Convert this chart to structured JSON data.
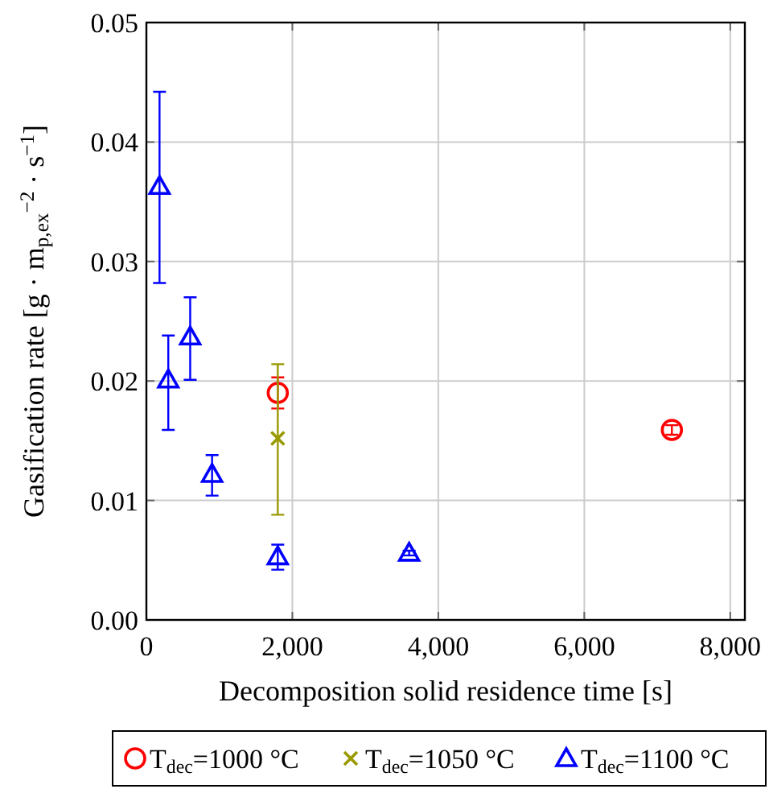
{
  "chart_data": {
    "type": "scatter",
    "xlabel": "Decomposition solid residence time [s]",
    "ylabel": "Gasification rate [g · m$_{p,ex}$$^{−2}$ · s$^{−1}$]",
    "xlim": [
      0,
      8200
    ],
    "xticks": [
      0,
      {
        "value": 2000,
        "label": "2,000"
      },
      {
        "value": 4000,
        "label": "4,000"
      },
      {
        "value": 6000,
        "label": "6,000"
      },
      {
        "value": 8000,
        "label": "8,000"
      }
    ],
    "ylim": [
      0,
      0.05
    ],
    "yticks": [
      {
        "value": 0,
        "label": "0.00"
      },
      {
        "value": 0.01,
        "label": "0.01"
      },
      {
        "value": 0.02,
        "label": "0.02"
      },
      {
        "value": 0.03,
        "label": "0.03"
      },
      {
        "value": 0.04,
        "label": "0.04"
      },
      {
        "value": 0.05,
        "label": "0.05"
      }
    ],
    "grid": true,
    "legend": "bottom",
    "series": [
      {
        "name": "T$_{dec}$=1000 °C",
        "color": "#ff0000",
        "marker": "circle",
        "x": [
          1800,
          7200
        ],
        "values": [
          0.019,
          0.0159
        ],
        "errors": [
          [
            0.0177,
            0.0203
          ],
          [
            0.0155,
            0.0163
          ]
        ]
      },
      {
        "name": "T$_{dec}$=1050 °C",
        "color": "#999900",
        "marker": "cross",
        "x": [
          1800
        ],
        "values": [
          0.0152
        ],
        "errors": [
          [
            0.0088,
            0.0214
          ]
        ]
      },
      {
        "name": "T$_{dec}$=1100 °C",
        "color": "#0000ff",
        "marker": "triangle",
        "x": [
          180,
          300,
          600,
          900,
          1800,
          3600
        ],
        "values": [
          0.0363,
          0.0201,
          0.0237,
          0.0122,
          0.0053,
          0.0056
        ],
        "errors": [
          [
            0.0282,
            0.0442
          ],
          [
            0.0159,
            0.0238
          ],
          [
            0.0201,
            0.027
          ],
          [
            0.0104,
            0.0138
          ],
          [
            0.0042,
            0.0063
          ],
          [
            0.0054,
            0.0058
          ]
        ]
      }
    ]
  }
}
